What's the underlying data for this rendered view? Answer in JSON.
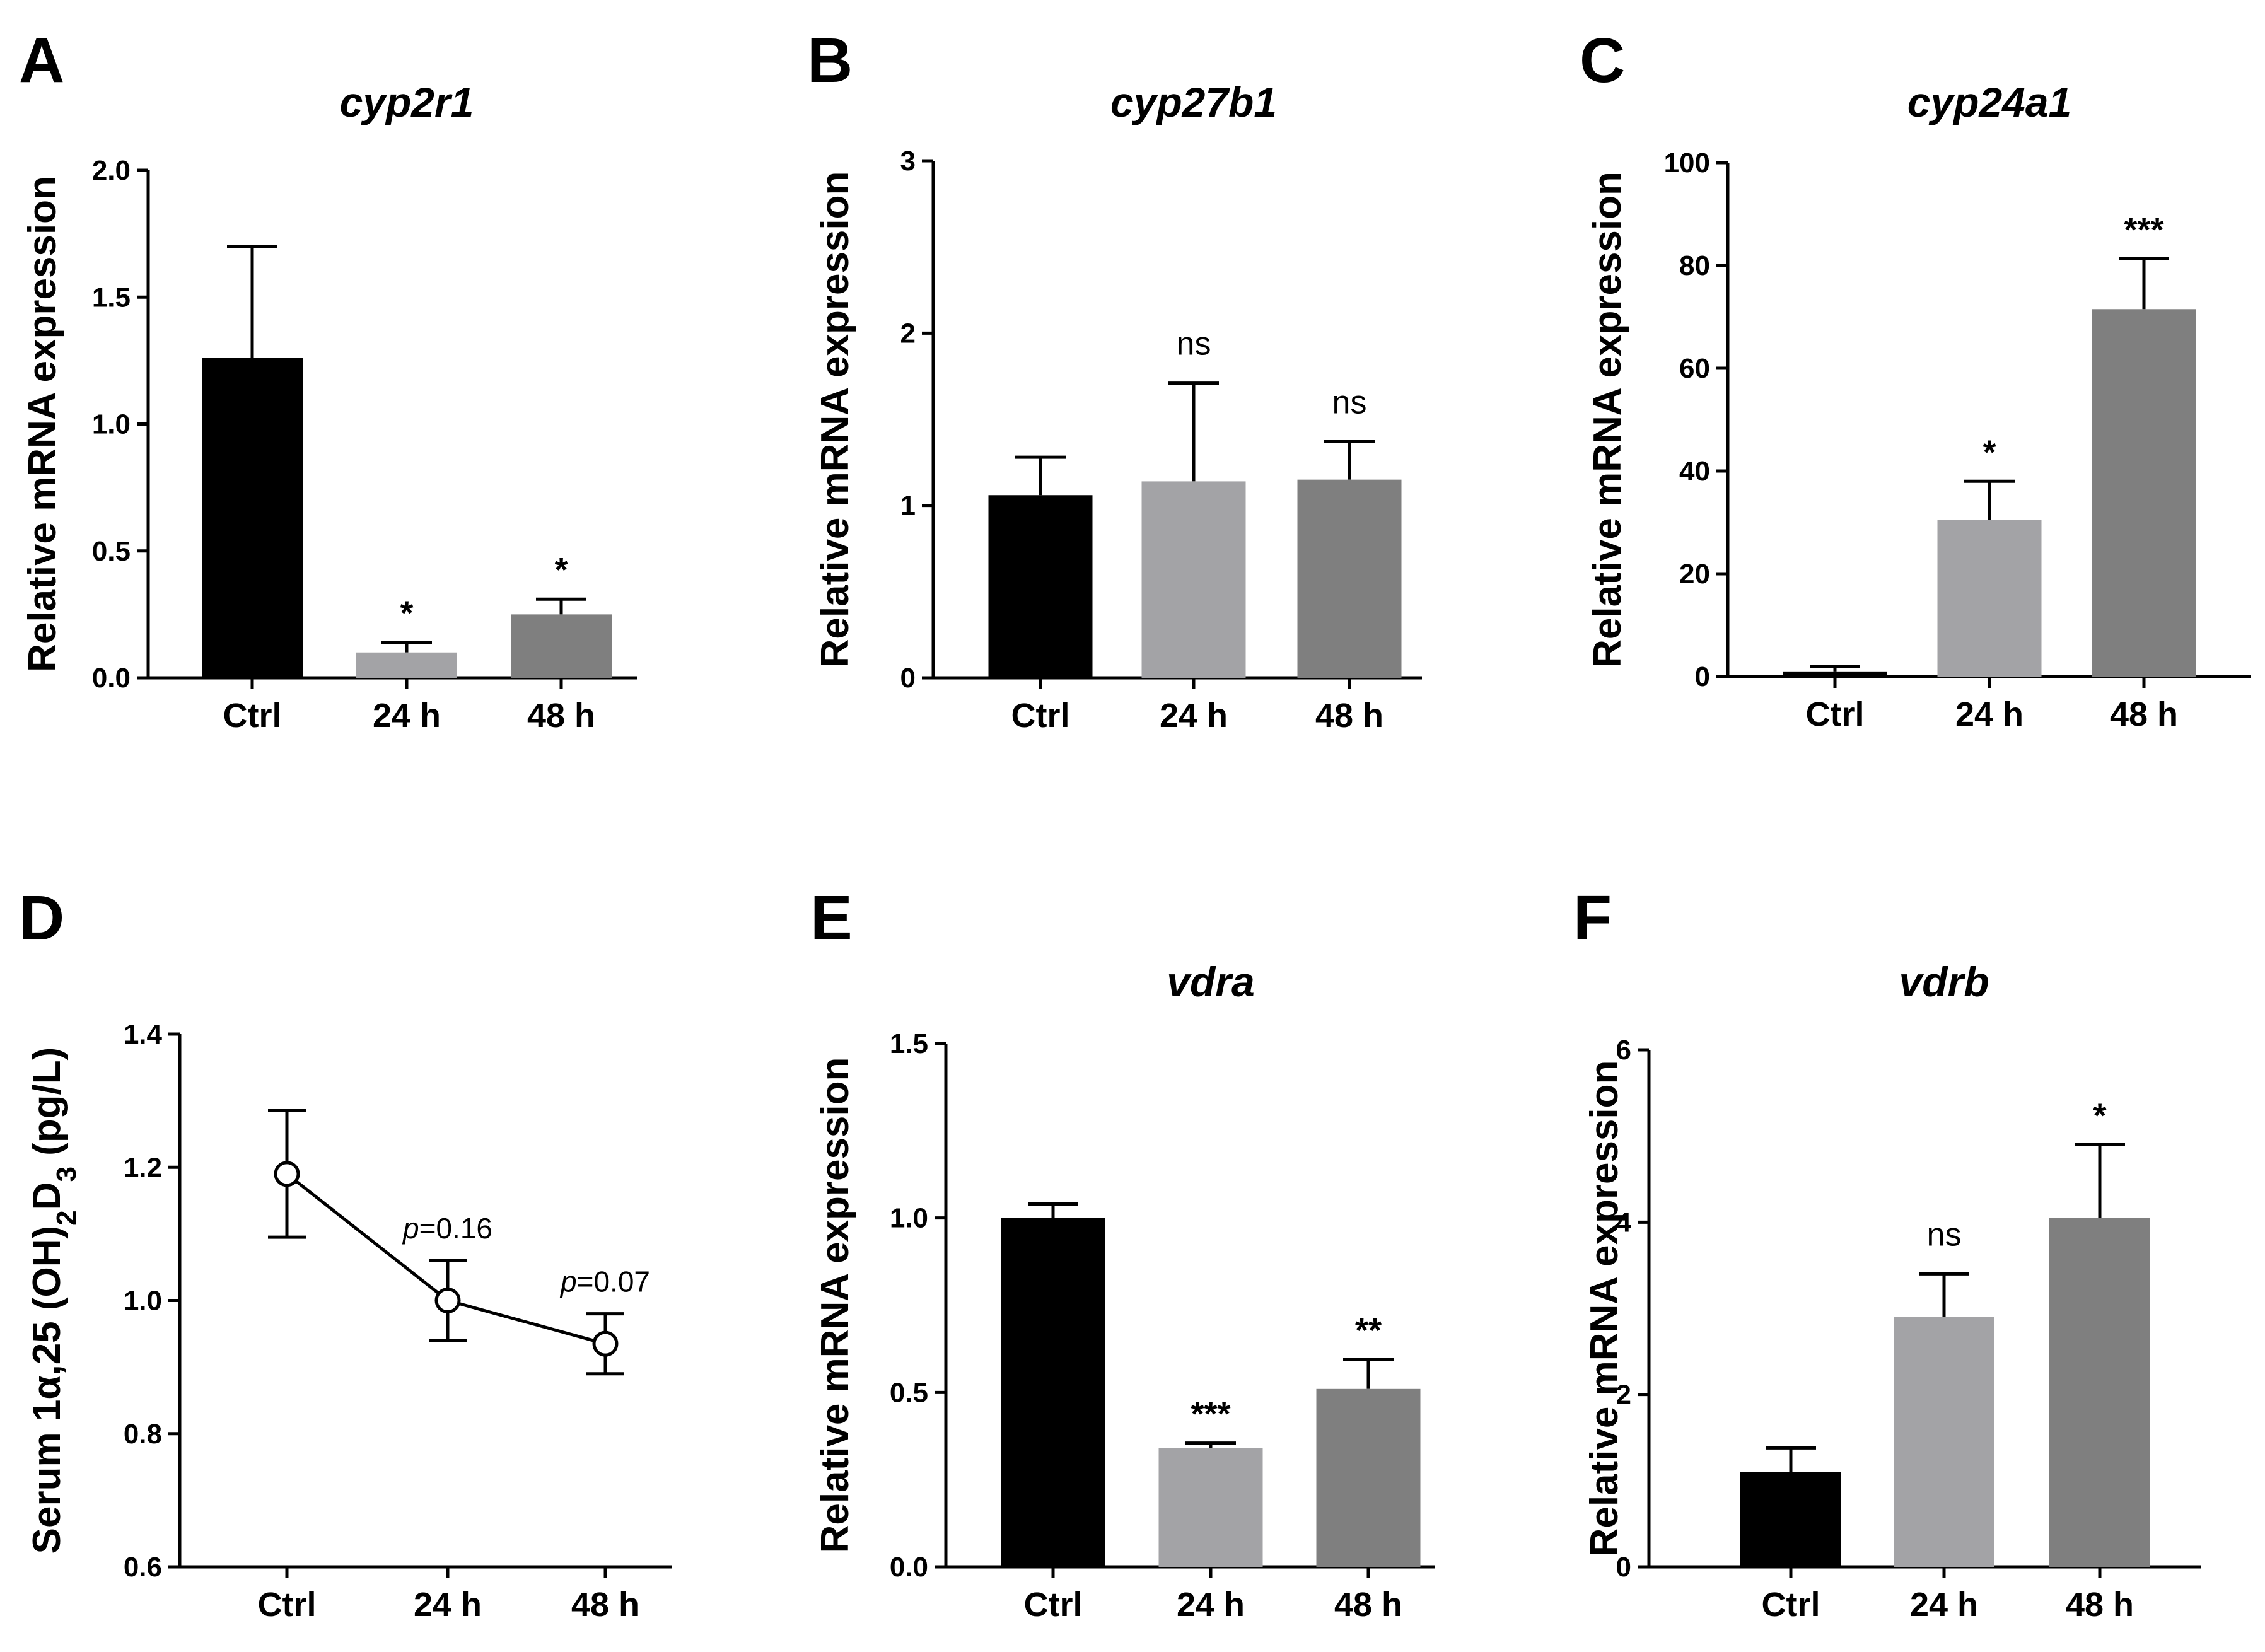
{
  "chart_data": [
    {
      "panel": "A",
      "type": "bar",
      "title": "cyp2r1",
      "ylabel": "Relative mRNA expression",
      "categories": [
        "Ctrl",
        "24 h",
        "48 h"
      ],
      "values": [
        1.26,
        0.1,
        0.25
      ],
      "errors": [
        0.44,
        0.04,
        0.06
      ],
      "annotations": [
        "",
        "*",
        "*"
      ],
      "ylim": [
        0,
        2.0
      ],
      "yticks": [
        "0.0",
        "0.5",
        "1.0",
        "1.5",
        "2.0"
      ],
      "colors": [
        "#000000",
        "#a3a3a6",
        "#7f7f7f"
      ]
    },
    {
      "panel": "B",
      "type": "bar",
      "title": "cyp27b1",
      "ylabel": "Relative mRNA expression",
      "categories": [
        "Ctrl",
        "24 h",
        "48 h"
      ],
      "values": [
        1.06,
        1.14,
        1.15
      ],
      "errors": [
        0.22,
        0.57,
        0.22
      ],
      "annotations": [
        "",
        "ns",
        "ns"
      ],
      "ylim": [
        0,
        3
      ],
      "yticks": [
        "0",
        "1",
        "2",
        "3"
      ],
      "colors": [
        "#000000",
        "#a3a3a6",
        "#7f7f7f"
      ]
    },
    {
      "panel": "C",
      "type": "bar",
      "title": "cyp24a1",
      "ylabel": "Relative mRNA expression",
      "categories": [
        "Ctrl",
        "24 h",
        "48 h"
      ],
      "values": [
        1.0,
        30.5,
        71.5
      ],
      "errors": [
        1.0,
        7.5,
        9.8
      ],
      "annotations": [
        "",
        "*",
        "***"
      ],
      "ylim": [
        0,
        100
      ],
      "yticks": [
        "0",
        "20",
        "40",
        "60",
        "80",
        "100"
      ],
      "colors": [
        "#000000",
        "#a3a3a6",
        "#7f7f7f"
      ]
    },
    {
      "panel": "D",
      "type": "line",
      "title": "",
      "ylabel": "Serum 1α,25 (OH)₂D₃ (pg/L)",
      "categories": [
        "Ctrl",
        "24 h",
        "48 h"
      ],
      "values": [
        1.19,
        1.0,
        0.935
      ],
      "errors": [
        0.095,
        0.06,
        0.045
      ],
      "annotations": [
        "",
        "p=0.16",
        "p=0.07"
      ],
      "ylim": [
        0.6,
        1.4
      ],
      "yticks": [
        "0.6",
        "0.8",
        "1.0",
        "1.2",
        "1.4"
      ],
      "colors": [
        "#000000"
      ]
    },
    {
      "panel": "E",
      "type": "bar",
      "title": "vdra",
      "ylabel": "Relative mRNA expression",
      "categories": [
        "Ctrl",
        "24 h",
        "48 h"
      ],
      "values": [
        1.0,
        0.34,
        0.51
      ],
      "errors": [
        0.04,
        0.015,
        0.085
      ],
      "annotations": [
        "",
        "***",
        "**"
      ],
      "ylim": [
        0,
        1.5
      ],
      "yticks": [
        "0.0",
        "0.5",
        "1.0",
        "1.5"
      ],
      "colors": [
        "#000000",
        "#a3a3a6",
        "#7f7f7f"
      ]
    },
    {
      "panel": "F",
      "type": "bar",
      "title": "vdrb",
      "ylabel": "Relative mRNA expression",
      "categories": [
        "Ctrl",
        "24 h",
        "48 h"
      ],
      "values": [
        1.1,
        2.9,
        4.05
      ],
      "errors": [
        0.28,
        0.5,
        0.85
      ],
      "annotations": [
        "",
        "ns",
        "*"
      ],
      "ylim": [
        0,
        6
      ],
      "yticks": [
        "0",
        "2",
        "4",
        "6"
      ],
      "colors": [
        "#000000",
        "#a3a3a6",
        "#7f7f7f"
      ]
    }
  ]
}
